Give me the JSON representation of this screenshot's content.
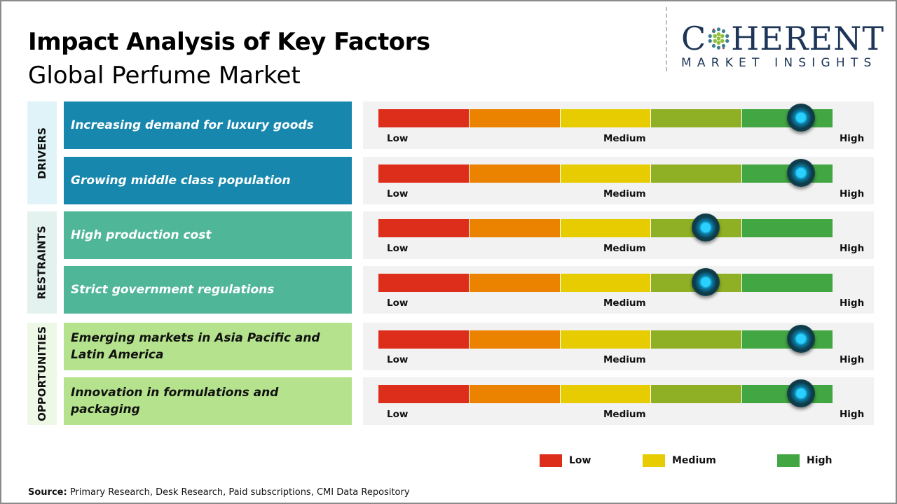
{
  "header": {
    "title": "Impact Analysis of Key Factors",
    "subtitle": "Global Perfume Market"
  },
  "logo": {
    "top": "COHERENT",
    "top_before": "C",
    "top_after": "HERENT",
    "bottom": "MARKET INSIGHTS"
  },
  "scale_labels": {
    "low": "Low",
    "medium": "Medium",
    "high": "High"
  },
  "segment_colors": [
    "#dd2e1c",
    "#eb8200",
    "#e6cc00",
    "#8fb024",
    "#42a642"
  ],
  "categories": [
    {
      "label": "DRIVERS",
      "panel_color": "#dff3f9",
      "box_color": "#1787ad",
      "text_color": "#ffffff",
      "factors": [
        {
          "label": "Increasing demand for luxury goods",
          "level": 0.93
        },
        {
          "label": "Growing middle class population",
          "level": 0.93
        }
      ]
    },
    {
      "label": "RESTRAINTS",
      "panel_color": "#e3f2ee",
      "box_color": "#4fb698",
      "text_color": "#ffffff",
      "factors": [
        {
          "label": "High production  cost",
          "level": 0.72
        },
        {
          "label": "Strict government  regulations",
          "level": 0.72
        }
      ]
    },
    {
      "label": "OPPORTUNITIES",
      "panel_color": "#eef8e6",
      "box_color": "#b5e38d",
      "text_color": "#111111",
      "factors": [
        {
          "label": "Emerging markets  in Asia Pacific and Latin America",
          "level": 0.93
        },
        {
          "label": "Innovation  in formulations  and packaging",
          "level": 0.93
        }
      ]
    }
  ],
  "legend": [
    {
      "label": "Low",
      "color": "#dd2e1c"
    },
    {
      "label": "Medium",
      "color": "#e6cc00"
    },
    {
      "label": "High",
      "color": "#42a642"
    }
  ],
  "source": {
    "label": "Source:",
    "text": " Primary Research, Desk Research, Paid subscriptions, CMI Data Repository"
  }
}
